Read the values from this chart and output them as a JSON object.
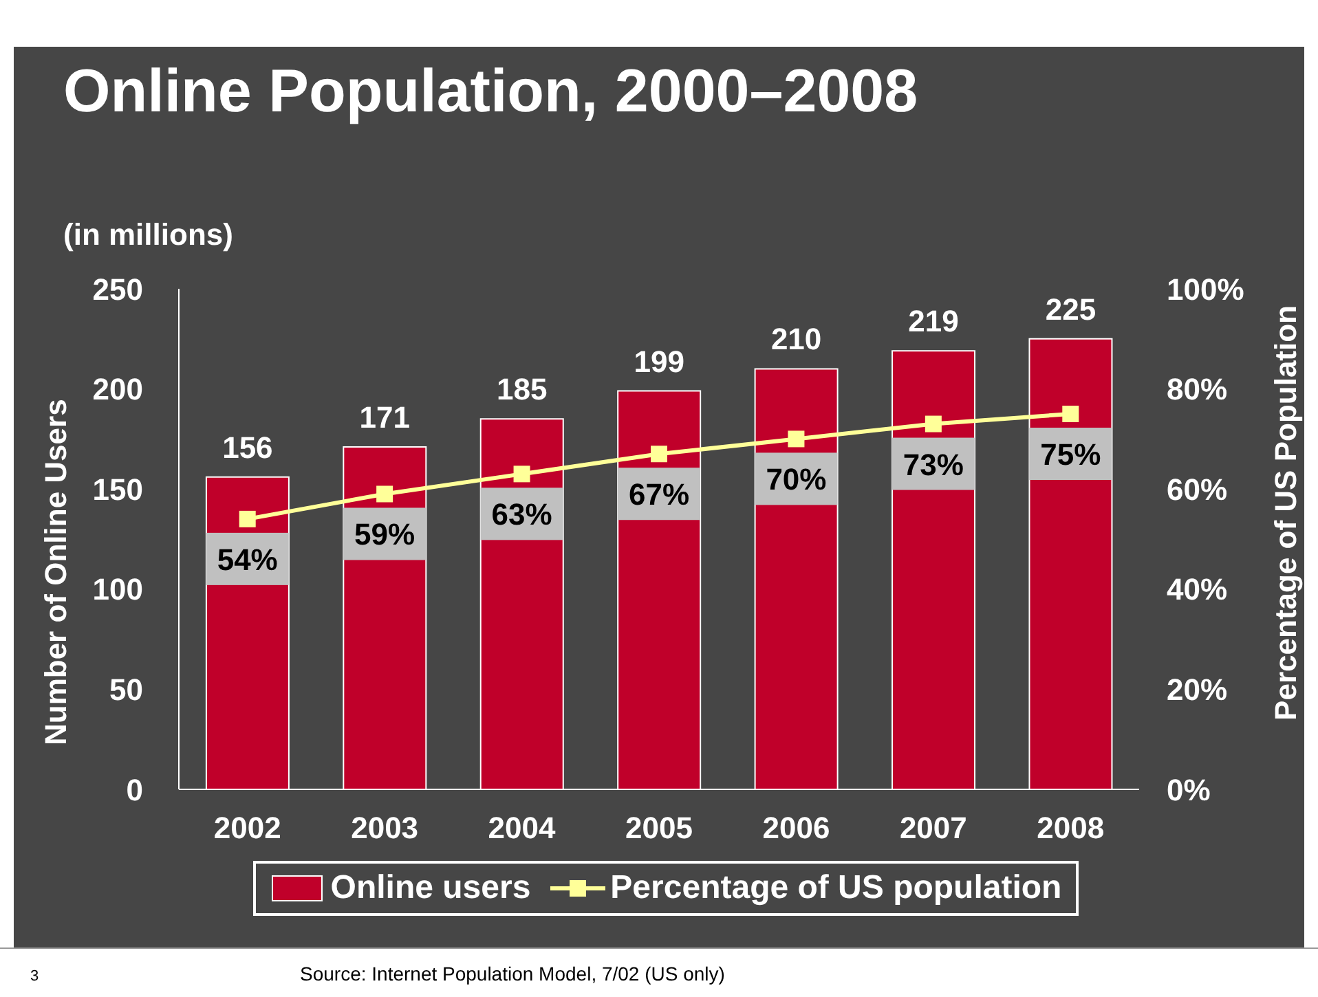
{
  "chart_data": {
    "type": "bar",
    "title": "Online Population, 2000–2008",
    "ylabel": "Number of Online Users",
    "y2label": "Percentage of US Population",
    "annotations": [
      "(in millions)",
      "3",
      "Source: Internet Population Model, 7/02 (US only)"
    ],
    "categories": [
      "2002",
      "2003",
      "2004",
      "2005",
      "2006",
      "2007",
      "2008"
    ],
    "series": [
      {
        "name": "Online users",
        "color": "#c0002a",
        "values": [
          156,
          171,
          185,
          199,
          210,
          219,
          225
        ],
        "value_labels": [
          "156",
          "171",
          "185",
          "199",
          "210",
          "219",
          "225"
        ]
      },
      {
        "name": "Percentage of US population",
        "type": "line",
        "axis": "y2",
        "color": "#ffff99",
        "values": [
          54,
          59,
          63,
          67,
          70,
          73,
          75
        ],
        "value_labels": [
          "54%",
          "59%",
          "63%",
          "67%",
          "70%",
          "73%",
          "75%"
        ]
      }
    ],
    "ylim": [
      0,
      250
    ],
    "yticks": [
      0,
      50,
      100,
      150,
      200,
      250
    ],
    "y2lim": [
      0,
      100
    ],
    "y2ticks": [
      {
        "value": 0,
        "label": "0%"
      },
      {
        "value": 20,
        "label": "20%"
      },
      {
        "value": 40,
        "label": "40%"
      },
      {
        "value": 60,
        "label": "60%"
      },
      {
        "value": 80,
        "label": "80%"
      },
      {
        "value": 100,
        "label": "100%"
      }
    ],
    "grid": false,
    "legend": "bottom",
    "marker": "square",
    "line_style": "solid"
  }
}
